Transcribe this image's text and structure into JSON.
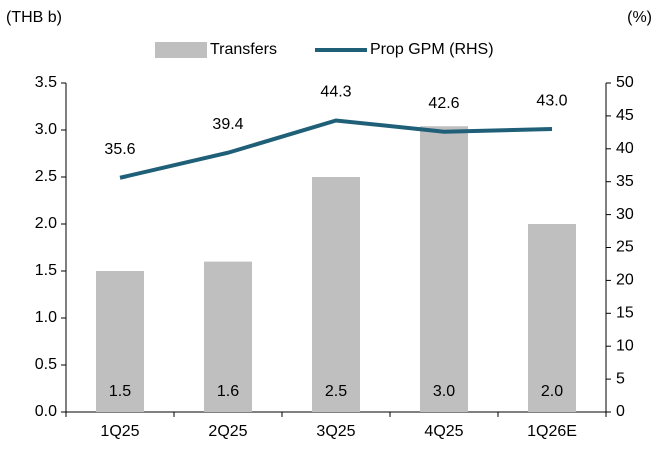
{
  "chart_data": {
    "type": "bar-line",
    "left_unit": "(THB b)",
    "right_unit": "(%)",
    "categories": [
      "1Q25",
      "2Q25",
      "3Q25",
      "4Q25",
      "1Q26E"
    ],
    "series": [
      {
        "name": "Transfers",
        "type": "bar",
        "color": "#bfbfbf",
        "values": [
          1.5,
          1.6,
          2.5,
          3.04,
          2.0
        ],
        "value_labels": [
          "1.5",
          "1.6",
          "2.5",
          "3.0",
          "2.0"
        ],
        "label_color": "#333333"
      },
      {
        "name": "Prop GPM (RHS)",
        "type": "line",
        "axis": "y2",
        "color": "#1f5f78",
        "values": [
          35.6,
          39.4,
          44.3,
          42.6,
          43.0
        ],
        "value_labels": [
          "35.6",
          "39.4",
          "44.3",
          "42.6",
          "43.0"
        ],
        "label_color": "#3a5a8c"
      }
    ],
    "ylim": [
      0,
      3.5
    ],
    "yticks": [
      {
        "value": 0,
        "label": "0.0"
      },
      {
        "value": 0.5,
        "label": "0.5"
      },
      {
        "value": 1,
        "label": "1.0"
      },
      {
        "value": 1.5,
        "label": "1.5"
      },
      {
        "value": 2,
        "label": "2.0"
      },
      {
        "value": 2.5,
        "label": "2.5"
      },
      {
        "value": 3,
        "label": "3.0"
      },
      {
        "value": 3.5,
        "label": "3.5"
      }
    ],
    "y2lim": [
      0,
      50
    ],
    "y2ticks": [
      0,
      5,
      10,
      15,
      20,
      25,
      30,
      35,
      40,
      45,
      50
    ],
    "legend": "top",
    "grid": false
  }
}
